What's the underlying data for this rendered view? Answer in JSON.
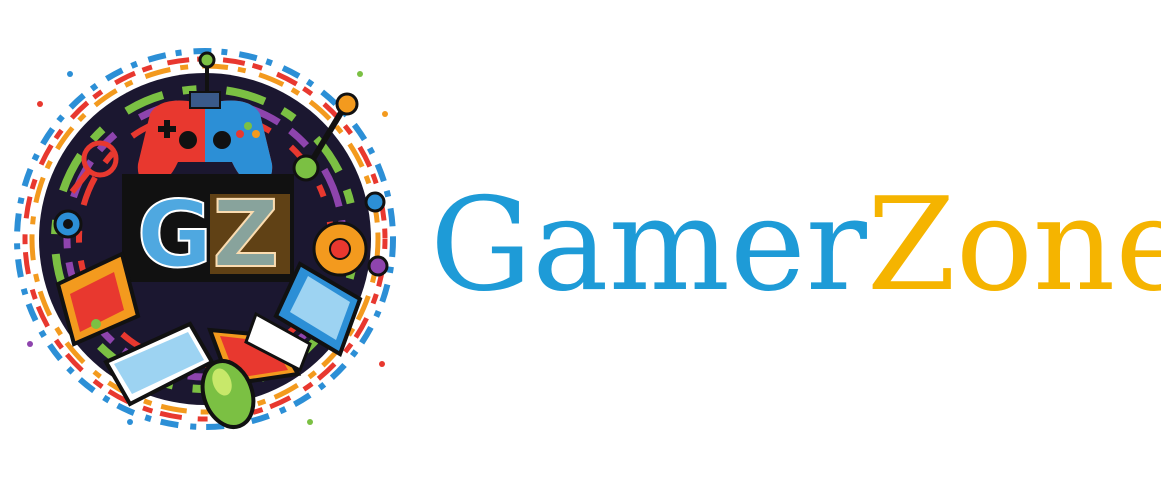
{
  "brand": {
    "name_part1": "Gamer",
    "name_part2": "Zone",
    "monogram": "GZ",
    "colors": {
      "gamer": "#1E9BD7",
      "zone": "#F5B400",
      "ring_dark": "#1b1730",
      "accent_red": "#E8382F",
      "accent_blue": "#2C8FD6",
      "accent_green": "#7BC043",
      "accent_orange": "#F39A1E",
      "accent_purple": "#8E44AD"
    },
    "icons": [
      "gamepad-icon",
      "keyboard-icon",
      "mouse-icon",
      "laptop-icon",
      "joystick-icon",
      "gear-icon",
      "magnifier-icon"
    ]
  }
}
